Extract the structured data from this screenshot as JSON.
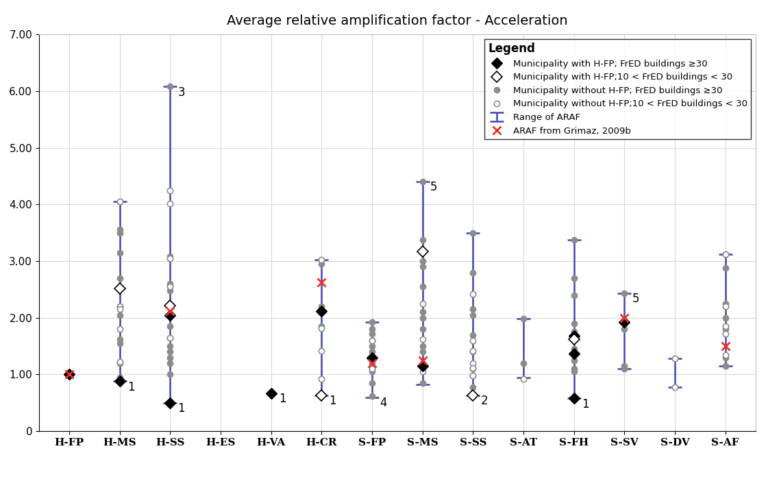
{
  "chart_data": {
    "type": "scatter",
    "title": "Average relative amplification factor - Acceleration",
    "categories": [
      "H-FP",
      "H-MS",
      "H-SS",
      "H-ES",
      "H-VA",
      "H-CR",
      "S-FP",
      "S-MS",
      "S-SS",
      "S-AT",
      "S-FH",
      "S-SV",
      "S-DV",
      "S-AF"
    ],
    "ylim": [
      0,
      7
    ],
    "yticks": [
      0,
      {
        "value": 1,
        "label": "1.00"
      },
      {
        "value": 2,
        "label": "2.00"
      },
      {
        "value": 3,
        "label": "3.00"
      },
      {
        "value": 4,
        "label": "4.00"
      },
      {
        "value": 5,
        "label": "5.00"
      },
      {
        "value": 6,
        "label": "6.00"
      },
      {
        "value": 7,
        "label": "7.00"
      }
    ],
    "grid": true,
    "legend": "upper right",
    "legend_title": "Legend",
    "series": [
      {
        "name": "Range of ARAF",
        "type": "range",
        "color": "#3f48a8",
        "values": [
          null,
          [
            0.88,
            4.05
          ],
          [
            0.5,
            6.08
          ],
          null,
          null,
          [
            0.63,
            3.02
          ],
          [
            0.6,
            1.92
          ],
          [
            0.83,
            4.4
          ],
          [
            0.63,
            3.5
          ],
          [
            0.95,
            1.98
          ],
          [
            0.58,
            3.38
          ],
          [
            1.1,
            2.43
          ],
          [
            0.77,
            1.28
          ],
          [
            1.15,
            3.12
          ]
        ]
      },
      {
        "name": "Municipality without H-FP; FrED buildings ≥30",
        "type": "scatter",
        "marker": "circle",
        "color": "#8c8c8c",
        "values": [
          [],
          [
            3.55,
            3.5,
            3.15,
            2.7,
            2.5,
            2.2,
            2.05,
            1.62,
            1.55,
            1.2,
            0.95
          ],
          [
            6.08,
            3.08,
            2.6,
            2.48,
            2.2,
            1.85,
            1.65,
            1.5,
            1.4,
            1.3,
            1.2,
            1.0
          ],
          [],
          [],
          [
            2.95,
            2.2,
            1.85
          ],
          [
            1.92,
            1.8,
            1.72,
            1.6,
            1.5,
            1.4,
            1.3,
            1.2,
            1.05,
            0.85,
            0.62
          ],
          [
            4.4,
            3.38,
            3.0,
            2.9,
            2.55,
            2.1,
            2.0,
            1.8,
            1.5,
            1.4,
            1.2,
            0.85
          ],
          [
            3.5,
            2.8,
            2.15,
            2.05,
            1.7,
            1.4,
            1.1,
            0.98,
            0.78
          ],
          [
            1.98,
            1.2
          ],
          [
            3.38,
            2.7,
            2.4,
            1.9,
            1.75,
            1.45,
            1.25,
            1.1,
            1.05
          ],
          [
            2.43,
            1.8,
            1.15,
            1.1
          ],
          [],
          [
            2.88,
            2.25,
            2.0,
            1.8,
            1.3,
            1.15
          ]
        ]
      },
      {
        "name": "Municipality without H-FP;10 < FrED buildings < 30",
        "type": "scatter",
        "marker": "open_circle",
        "color": "#8c8c8c",
        "values": [
          [],
          [
            4.05,
            2.2,
            2.15,
            1.8,
            1.22
          ],
          [
            4.25,
            4.02,
            3.05,
            2.55,
            1.65
          ],
          [],
          [],
          [
            3.02,
            1.82,
            1.42,
            0.92
          ],
          [
            1.6,
            1.1
          ],
          [
            2.25,
            1.62,
            1.05
          ],
          [
            2.42,
            1.6,
            1.42,
            1.2,
            1.12,
            0.98
          ],
          [
            0.92
          ],
          [],
          [],
          [
            1.28,
            0.77
          ],
          [
            3.12,
            2.2,
            1.85,
            1.72,
            1.35
          ]
        ]
      },
      {
        "name": "Municipality with H-FP; FrED buildings ≥30",
        "type": "scatter",
        "marker": "diamond",
        "color": "#000000",
        "values": [
          [
            1.0
          ],
          [
            0.88
          ],
          [
            2.05,
            0.5
          ],
          [],
          [
            0.67
          ],
          [
            2.12
          ],
          [
            1.3
          ],
          [
            1.15
          ],
          [],
          [],
          [
            1.68,
            1.37,
            0.58
          ],
          [
            1.92
          ],
          [],
          []
        ]
      },
      {
        "name": "Municipality with H-FP;10 < FrED buildings < 30",
        "type": "scatter",
        "marker": "open_diamond",
        "color": "#000000",
        "values": [
          [],
          [
            2.52
          ],
          [
            2.22
          ],
          [],
          [],
          [
            0.63
          ],
          [],
          [
            3.17
          ],
          [
            0.63
          ],
          [],
          [
            1.62
          ],
          [],
          [],
          []
        ]
      },
      {
        "name": "ARAF from Grimaz, 2009b",
        "type": "scatter",
        "marker": "x",
        "color": "#e8312a",
        "values": [
          [
            1.0
          ],
          [],
          [
            2.12
          ],
          [],
          [],
          [
            2.63
          ],
          [
            1.2
          ],
          [
            1.25
          ],
          [],
          [],
          [],
          [
            2.0
          ],
          [],
          [
            1.5
          ]
        ]
      }
    ],
    "legend_order": [
      "Municipality with H-FP; FrED buildings ≥30",
      "Municipality with H-FP;10 < FrED buildings < 30",
      "Municipality without H-FP; FrED buildings ≥30",
      "Municipality without H-FP;10 < FrED buildings < 30",
      "Range of ARAF",
      "ARAF from Grimaz, 2009b"
    ],
    "annotations": [
      {
        "text": "1",
        "category": "H-MS",
        "value": 0.88
      },
      {
        "text": "3",
        "category": "H-SS",
        "value": 6.08
      },
      {
        "text": "1",
        "category": "H-SS",
        "value": 0.5
      },
      {
        "text": "1",
        "category": "H-VA",
        "value": 0.67
      },
      {
        "text": "1",
        "category": "H-CR",
        "value": 0.63
      },
      {
        "text": "4",
        "category": "S-FP",
        "value": 0.6
      },
      {
        "text": "5",
        "category": "S-MS",
        "value": 4.4
      },
      {
        "text": "2",
        "category": "S-SS",
        "value": 0.63
      },
      {
        "text": "1",
        "category": "S-FH",
        "value": 0.58
      },
      {
        "text": "5",
        "category": "S-SV",
        "value": 2.43
      }
    ]
  }
}
